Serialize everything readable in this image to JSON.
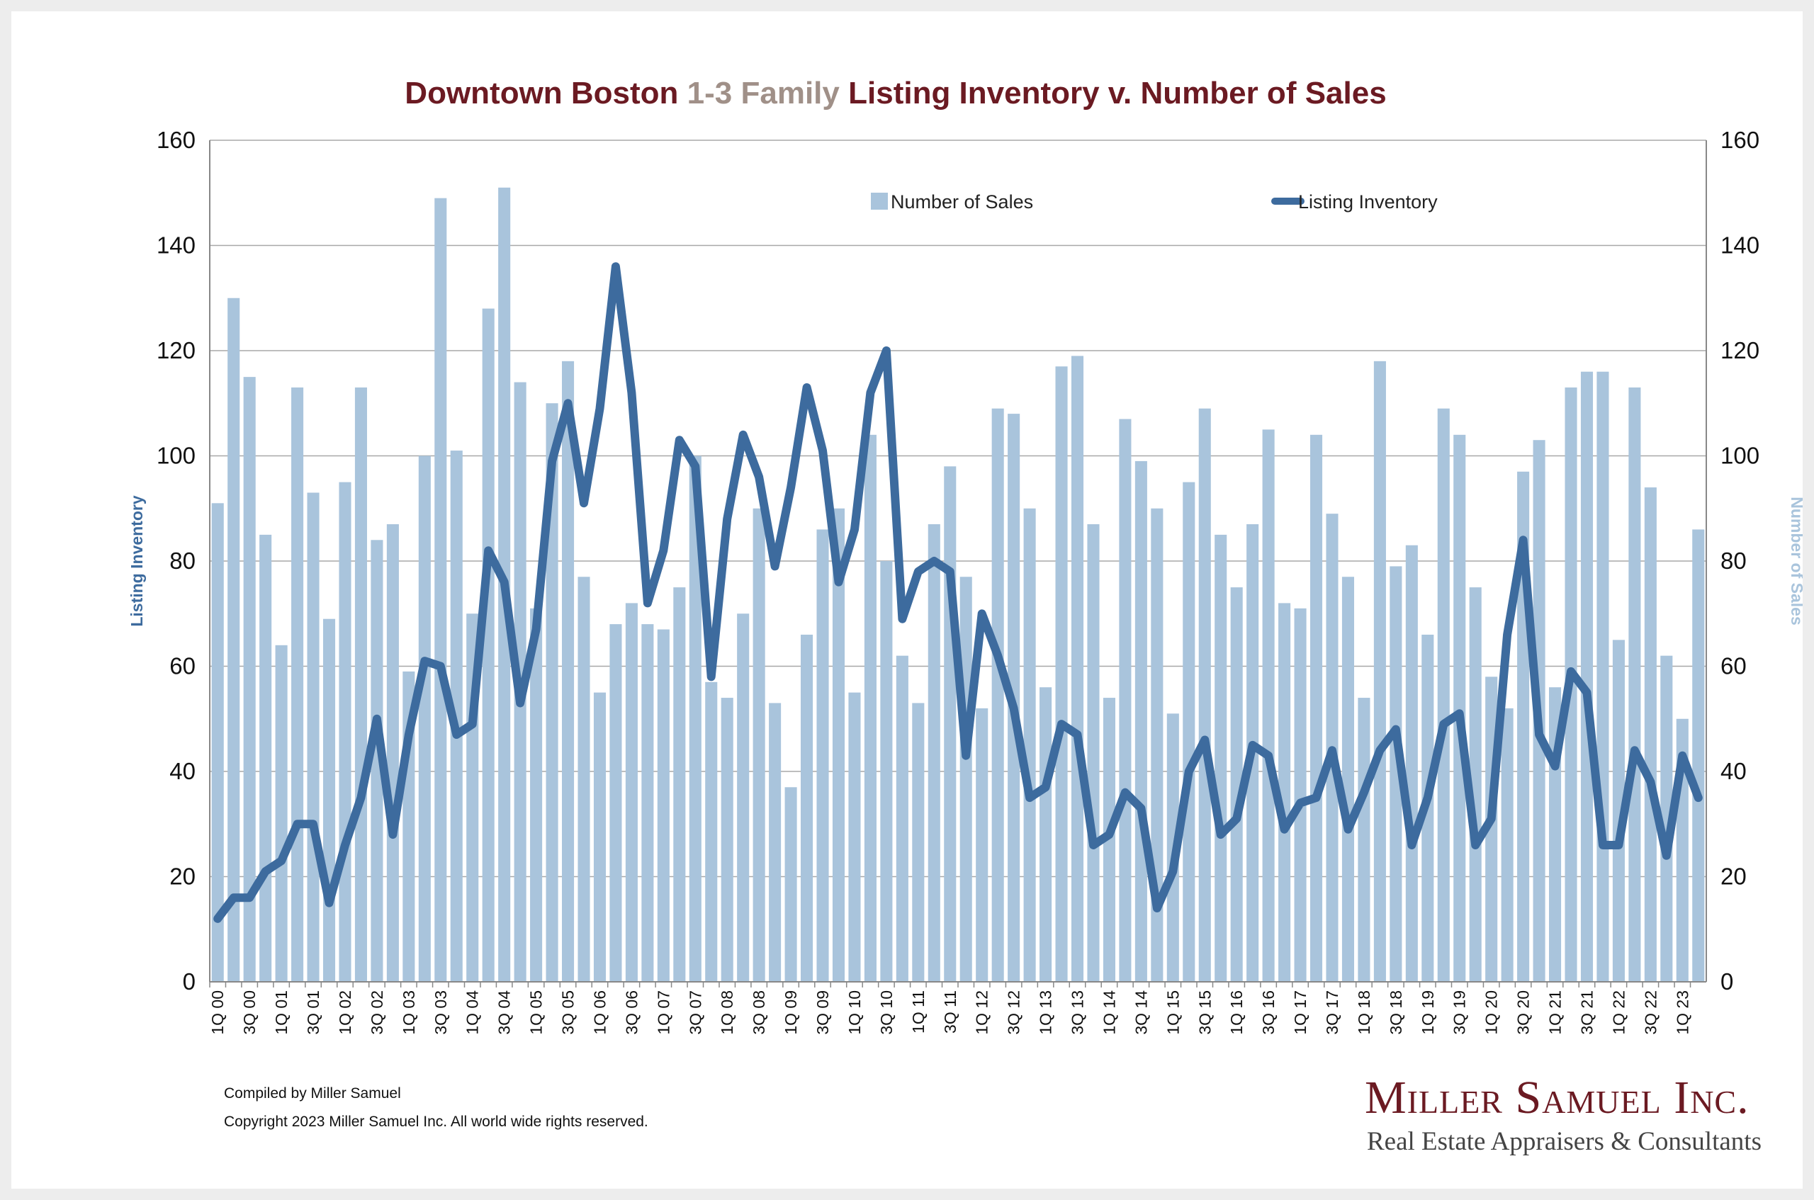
{
  "chart_data": {
    "type": "bar",
    "title_parts": [
      {
        "text": "Downtown Boston ",
        "color": "#6b1a22"
      },
      {
        "text": "1-3 Family",
        "color": "#a09088"
      },
      {
        "text": " Listing Inventory v. Number of Sales",
        "color": "#6b1a22"
      }
    ],
    "ylabel_left": "Listing Inventory",
    "ylabel_right": "Number of Sales",
    "ylim": [
      0,
      160
    ],
    "yticks": [
      0,
      20,
      40,
      60,
      80,
      100,
      120,
      140,
      160
    ],
    "grid": true,
    "legend_position": "top",
    "categories": [
      "1Q 00",
      "2Q 00",
      "3Q 00",
      "4Q 00",
      "1Q 01",
      "2Q 01",
      "3Q 01",
      "4Q 01",
      "1Q 02",
      "2Q 02",
      "3Q 02",
      "4Q 02",
      "1Q 03",
      "2Q 03",
      "3Q 03",
      "4Q 03",
      "1Q 04",
      "2Q 04",
      "3Q 04",
      "4Q 04",
      "1Q 05",
      "2Q 05",
      "3Q 05",
      "4Q 05",
      "1Q 06",
      "2Q 06",
      "3Q 06",
      "4Q 06",
      "1Q 07",
      "2Q 07",
      "3Q 07",
      "4Q 07",
      "1Q 08",
      "2Q 08",
      "3Q 08",
      "4Q 08",
      "1Q 09",
      "2Q 09",
      "3Q 09",
      "4Q 09",
      "1Q 10",
      "2Q 10",
      "3Q 10",
      "4Q 10",
      "1Q 11",
      "2Q 11",
      "3Q 11",
      "4Q 11",
      "1Q 12",
      "2Q 12",
      "3Q 12",
      "4Q 12",
      "1Q 13",
      "2Q 13",
      "3Q 13",
      "4Q 13",
      "1Q 14",
      "2Q 14",
      "3Q 14",
      "4Q 14",
      "1Q 15",
      "2Q 15",
      "3Q 15",
      "4Q 15",
      "1Q 16",
      "2Q 16",
      "3Q 16",
      "4Q 16",
      "1Q 17",
      "2Q 17",
      "3Q 17",
      "4Q 17",
      "1Q 18",
      "2Q 18",
      "3Q 18",
      "4Q 18",
      "1Q 19",
      "2Q 19",
      "3Q 19",
      "4Q 19",
      "1Q 20",
      "2Q 20",
      "3Q 20",
      "4Q 20",
      "1Q 21",
      "2Q 21",
      "3Q 21",
      "4Q 21",
      "1Q 22",
      "2Q 22",
      "3Q 22",
      "4Q 22",
      "1Q 23",
      "2Q 23"
    ],
    "xtick_labels": [
      "1Q 00",
      "3Q 00",
      "1Q 01",
      "3Q 01",
      "1Q 02",
      "3Q 02",
      "1Q 03",
      "3Q 03",
      "1Q 04",
      "3Q 04",
      "1Q 05",
      "3Q 05",
      "1Q 06",
      "3Q 06",
      "1Q 07",
      "3Q 07",
      "1Q 08",
      "3Q 08",
      "1Q 09",
      "3Q 09",
      "1Q 10",
      "3Q 10",
      "1Q 11",
      "3Q 11",
      "1Q 12",
      "3Q 12",
      "1Q 13",
      "3Q 13",
      "1Q 14",
      "3Q 14",
      "1Q 15",
      "3Q 15",
      "1Q 16",
      "3Q 16",
      "1Q 17",
      "3Q 17",
      "1Q 18",
      "3Q 18",
      "1Q 19",
      "3Q 19",
      "1Q 20",
      "3Q 20",
      "1Q 21",
      "3Q 21",
      "1Q 22",
      "3Q 22",
      "1Q 23"
    ],
    "series": [
      {
        "name": "Number of Sales",
        "kind": "bar",
        "axis": "right",
        "color": "#a9c4dc",
        "values": [
          91,
          130,
          115,
          85,
          64,
          113,
          93,
          69,
          95,
          113,
          84,
          87,
          59,
          100,
          149,
          101,
          70,
          128,
          151,
          114,
          71,
          110,
          118,
          77,
          55,
          68,
          72,
          68,
          67,
          75,
          100,
          57,
          54,
          70,
          90,
          53,
          37,
          66,
          86,
          90,
          55,
          104,
          80,
          62,
          53,
          87,
          98,
          77,
          52,
          109,
          108,
          90,
          56,
          117,
          119,
          87,
          54,
          107,
          99,
          90,
          51,
          95,
          109,
          85,
          75,
          87,
          105,
          72,
          71,
          104,
          89,
          77,
          54,
          118,
          79,
          83,
          66,
          109,
          104,
          75,
          58,
          52,
          97,
          103,
          56,
          113,
          116,
          116,
          65,
          113,
          94,
          62,
          50,
          86
        ]
      },
      {
        "name": "Listing Inventory",
        "kind": "line",
        "axis": "left",
        "color": "#3d6b9e",
        "values": [
          12,
          16,
          16,
          21,
          23,
          30,
          30,
          15,
          26,
          35,
          50,
          28,
          47,
          61,
          60,
          47,
          49,
          82,
          76,
          53,
          67,
          99,
          110,
          91,
          109,
          136,
          112,
          72,
          82,
          103,
          98,
          58,
          88,
          104,
          96,
          79,
          94,
          113,
          101,
          76,
          86,
          112,
          120,
          69,
          78,
          80,
          78,
          43,
          70,
          62,
          52,
          35,
          37,
          49,
          47,
          26,
          28,
          36,
          33,
          14,
          21,
          40,
          46,
          28,
          31,
          45,
          43,
          29,
          34,
          35,
          44,
          29,
          36,
          44,
          48,
          26,
          35,
          49,
          51,
          26,
          31,
          66,
          84,
          47,
          41,
          59,
          55,
          26,
          26,
          44,
          38,
          24,
          43,
          35
        ]
      }
    ]
  },
  "footer": {
    "compiled": "Compiled by Miller Samuel",
    "copyright": "Copyright 2023 Miller Samuel Inc.  All world wide rights reserved."
  },
  "brand": {
    "name": "Miller Samuel Inc.",
    "tagline": "Real Estate Appraisers & Consultants"
  },
  "colors": {
    "gridline": "#a8a8a8",
    "axis_line": "#888888",
    "left_axis_title": "#3d6b9e",
    "right_axis_title": "#a9c4dc"
  }
}
